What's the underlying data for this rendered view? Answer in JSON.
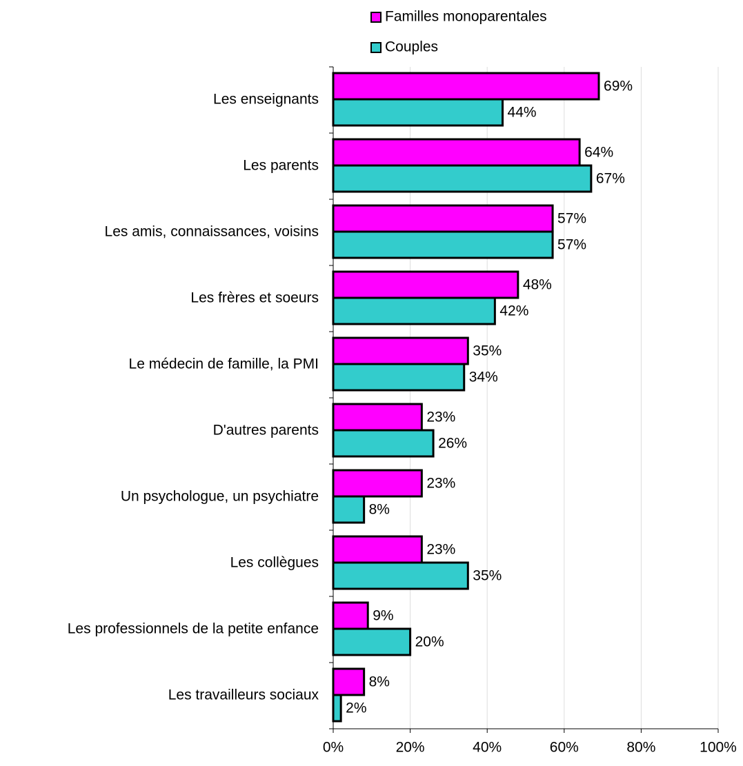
{
  "chart_data": {
    "type": "barh",
    "categories": [
      "Les enseignants",
      "Les parents",
      "Les amis, connaissances, voisins",
      "Les frères et soeurs",
      "Le médecin de famille, la PMI",
      "D'autres parents",
      "Un psychologue, un psychiatre",
      "Les collègues",
      "Les professionnels de la petite enfance",
      "Les travailleurs sociaux"
    ],
    "series": [
      {
        "name": "Familles monoparentales",
        "color": "#ff00ff",
        "values": [
          69,
          64,
          57,
          48,
          35,
          23,
          23,
          23,
          9,
          8
        ],
        "value_labels": [
          "69%",
          "64%",
          "57%",
          "48%",
          "35%",
          "23%",
          "23%",
          "23%",
          "9%",
          "8%"
        ]
      },
      {
        "name": "Couples",
        "color": "#33cccc",
        "values": [
          44,
          67,
          57,
          42,
          34,
          26,
          8,
          35,
          20,
          2
        ],
        "value_labels": [
          "44%",
          "67%",
          "57%",
          "42%",
          "34%",
          "26%",
          "8%",
          "35%",
          "20%",
          "2%"
        ]
      }
    ],
    "xlim": [
      0,
      100
    ],
    "xticks": [
      {
        "value": 0,
        "label": "0%"
      },
      {
        "value": 20,
        "label": "20%"
      },
      {
        "value": 40,
        "label": "40%"
      },
      {
        "value": 60,
        "label": "60%"
      },
      {
        "value": 80,
        "label": "80%"
      },
      {
        "value": 100,
        "label": "100%"
      }
    ],
    "grid": true,
    "legend": "top"
  }
}
